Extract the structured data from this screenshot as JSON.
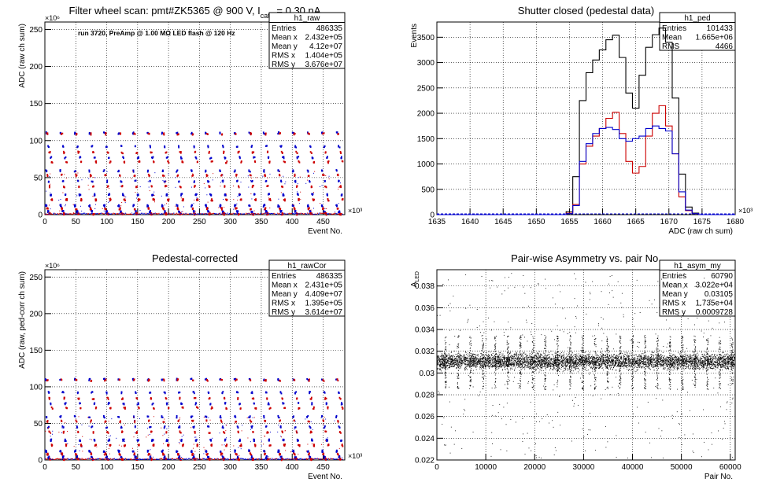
{
  "chart_data": [
    {
      "type": "scatter",
      "title_main": "Filter wheel scan: pmt#ZK5365 @   900 V, I",
      "title_sub": "cath",
      "title_tail": " = 0.30 nA",
      "annotation": "run 3720, PreAmp @ 1.00 MΩ LED flash @  120 Hz",
      "xlabel": "Event No.",
      "ylabel": "ADC (raw ch sum)",
      "x_exponent": "×10³",
      "y_exponent": "×10⁶",
      "xlim": [
        0,
        485
      ],
      "ylim": [
        0,
        260
      ],
      "xticks": [
        "0",
        "50",
        "100",
        "150",
        "200",
        "250",
        "300",
        "350",
        "400",
        "450"
      ],
      "yticks": [
        "0",
        "50",
        "100",
        "150",
        "200",
        "250"
      ],
      "grid": true,
      "legend_position": "top-right",
      "stats": {
        "name": "h1_raw",
        "rows": [
          [
            "Entries",
            "486335"
          ],
          [
            "Mean x",
            "2.432e+05"
          ],
          [
            "Mean y",
            "4.12e+07"
          ],
          [
            "RMS x",
            "1.404e+05"
          ],
          [
            "RMS y",
            "3.676e+07"
          ]
        ]
      },
      "levels": [
        {
          "y": 110,
          "color": "#0000cc",
          "note": ""
        },
        {
          "y": 109,
          "color": "#cc0000",
          "note": ""
        },
        {
          "y": 92,
          "color": "#0000cc",
          "note": ""
        },
        {
          "y": 84,
          "color": "#cc0000",
          "note": ""
        },
        {
          "y": 77,
          "color": "#0000cc",
          "note": ""
        },
        {
          "y": 71,
          "color": "#cc0000",
          "note": ""
        },
        {
          "y": 59,
          "color": "#0000cc",
          "note": ""
        },
        {
          "y": 53,
          "color": "#cc0000",
          "note": ""
        },
        {
          "y": 45,
          "color": "#0000cc",
          "note": ""
        },
        {
          "y": 38,
          "color": "#cc0000",
          "note": ""
        },
        {
          "y": 27,
          "color": "#0000cc",
          "note": ""
        },
        {
          "y": 20,
          "color": "#cc0000",
          "note": ""
        },
        {
          "y": 12,
          "color": "#0000cc",
          "note": ""
        },
        {
          "y": 8,
          "color": "#cc0000",
          "note": ""
        },
        {
          "y": 4,
          "color": "#0000cc",
          "note": ""
        },
        {
          "y": 1,
          "color": "#cc0000",
          "note": ""
        }
      ],
      "colors": {
        "red": "#cc0000",
        "blue": "#0000cc"
      }
    },
    {
      "type": "line",
      "title_main": "Shutter closed (pedestal data)",
      "xlabel": "ADC (raw ch sum)",
      "ylabel": "Events",
      "x_exponent": "×10³",
      "xlim": [
        1635,
        1680
      ],
      "ylim": [
        0,
        3800
      ],
      "xticks": [
        "1635",
        "1640",
        "1645",
        "1650",
        "1655",
        "1660",
        "1665",
        "1670",
        "1675",
        "1680"
      ],
      "yticks": [
        "0",
        "500",
        "1000",
        "1500",
        "2000",
        "2500",
        "3000",
        "3500"
      ],
      "grid": true,
      "legend_position": "top-right",
      "stats": {
        "name": "h1_ped",
        "rows": [
          [
            "Entries",
            "101433"
          ],
          [
            "Mean",
            "1.665e+06"
          ],
          [
            "RMS",
            "4466"
          ]
        ]
      },
      "series": [
        {
          "color": "#000000",
          "x": [
            1655.0,
            1656.0,
            1657.0,
            1658.0,
            1659.0,
            1660.0,
            1661.0,
            1662.0,
            1663.0,
            1664.0,
            1665.0,
            1666.0,
            1667.0,
            1668.0,
            1669.0,
            1670.0,
            1671.0,
            1672.0,
            1673.0,
            1674.0
          ],
          "values": [
            60,
            750,
            2250,
            2800,
            3050,
            3250,
            3450,
            3540,
            3100,
            2400,
            2100,
            2750,
            3300,
            3550,
            3680,
            3400,
            2300,
            800,
            150,
            30
          ]
        },
        {
          "color": "#cc0000",
          "x": [
            1655.0,
            1656.0,
            1657.0,
            1658.0,
            1659.0,
            1660.0,
            1661.0,
            1662.0,
            1663.0,
            1664.0,
            1665.0,
            1666.0,
            1667.0,
            1668.0,
            1669.0,
            1670.0,
            1671.0,
            1672.0,
            1673.0,
            1674.0
          ],
          "values": [
            30,
            200,
            1000,
            1350,
            1550,
            1700,
            1900,
            2020,
            1600,
            1050,
            820,
            950,
            1550,
            2000,
            2150,
            1750,
            1200,
            350,
            80,
            20
          ]
        },
        {
          "color": "#0000cc",
          "x": [
            1655.0,
            1656.0,
            1657.0,
            1658.0,
            1659.0,
            1660.0,
            1661.0,
            1662.0,
            1663.0,
            1664.0,
            1665.0,
            1666.0,
            1667.0,
            1668.0,
            1669.0,
            1670.0,
            1671.0,
            1672.0,
            1673.0,
            1674.0
          ],
          "values": [
            20,
            180,
            1050,
            1400,
            1600,
            1700,
            1720,
            1680,
            1500,
            1450,
            1500,
            1550,
            1700,
            1750,
            1700,
            1650,
            1200,
            450,
            90,
            20
          ]
        }
      ]
    },
    {
      "type": "scatter",
      "title_main": "Pedestal-corrected",
      "xlabel": "Event No.",
      "ylabel": "ADC (raw, ped-corr ch sum)",
      "x_exponent": "×10³",
      "y_exponent": "×10⁶",
      "xlim": [
        0,
        485
      ],
      "ylim": [
        0,
        260
      ],
      "xticks": [
        "0",
        "50",
        "100",
        "150",
        "200",
        "250",
        "300",
        "350",
        "400",
        "450"
      ],
      "yticks": [
        "0",
        "50",
        "100",
        "150",
        "200",
        "250"
      ],
      "grid": true,
      "legend_position": "top-right",
      "stats": {
        "name": "h1_rawCor",
        "rows": [
          [
            "Entries",
            "486335"
          ],
          [
            "Mean x",
            "2.431e+05"
          ],
          [
            "Mean y",
            "4.409e+07"
          ],
          [
            "RMS x",
            "1.395e+05"
          ],
          [
            "RMS y",
            "3.614e+07"
          ]
        ]
      },
      "levels": [
        {
          "y": 110,
          "color": "#0000cc"
        },
        {
          "y": 109,
          "color": "#cc0000"
        },
        {
          "y": 92,
          "color": "#0000cc"
        },
        {
          "y": 84,
          "color": "#cc0000"
        },
        {
          "y": 77,
          "color": "#0000cc"
        },
        {
          "y": 71,
          "color": "#cc0000"
        },
        {
          "y": 59,
          "color": "#0000cc"
        },
        {
          "y": 53,
          "color": "#cc0000"
        },
        {
          "y": 45,
          "color": "#0000cc"
        },
        {
          "y": 38,
          "color": "#cc0000"
        },
        {
          "y": 27,
          "color": "#0000cc"
        },
        {
          "y": 20,
          "color": "#cc0000"
        },
        {
          "y": 12,
          "color": "#0000cc"
        },
        {
          "y": 8,
          "color": "#cc0000"
        },
        {
          "y": 4,
          "color": "#0000cc"
        },
        {
          "y": 1,
          "color": "#cc0000"
        }
      ],
      "colors": {
        "red": "#cc0000",
        "blue": "#0000cc"
      }
    },
    {
      "type": "scatter",
      "title_main": "Pair-wise Asymmetry vs. pair No.",
      "xlabel": "Pair No.",
      "ylabel": "A",
      "ylabel_sub": "LED",
      "xlim": [
        0,
        61000
      ],
      "ylim": [
        0.022,
        0.0395
      ],
      "xticks": [
        "0",
        "10000",
        "20000",
        "30000",
        "40000",
        "50000",
        "60000"
      ],
      "yticks": [
        "0.022",
        "0.024",
        "0.026",
        "0.028",
        "0.03",
        "0.032",
        "0.034",
        "0.036",
        "0.038"
      ],
      "grid": true,
      "legend_position": "top-right",
      "stats": {
        "name": "h1_asym_my",
        "rows": [
          [
            "Entries",
            "60790"
          ],
          [
            "Mean x",
            "3.022e+04"
          ],
          [
            "Mean y",
            "0.03105"
          ],
          [
            "RMS x",
            "1.735e+04"
          ],
          [
            "RMS y",
            "0.0009728"
          ]
        ]
      },
      "band_center": 0.0311,
      "band_width": 0.0007,
      "spike_low": 0.0285,
      "spike_high": 0.0335,
      "color": "#000000"
    }
  ]
}
